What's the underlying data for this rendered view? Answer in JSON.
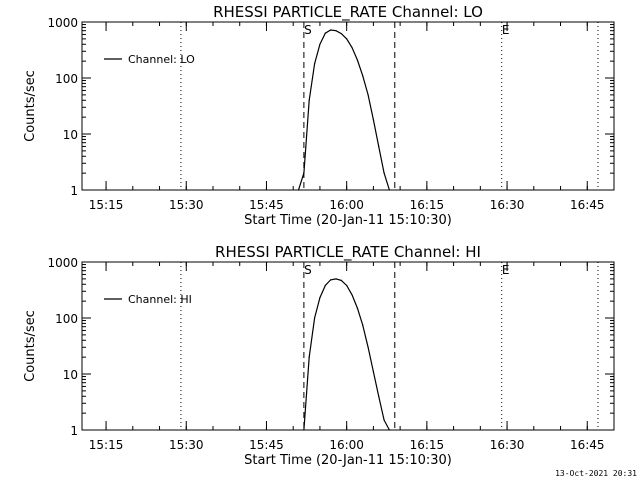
{
  "chart_data": [
    {
      "type": "line",
      "title": "RHESSI PARTICLE_RATE Channel: LO",
      "xlabel": "Start Time (20-Jan-11 15:10:30)",
      "ylabel": "Counts/sec",
      "yscale": "log",
      "ylim": [
        1,
        1000
      ],
      "y_ticks": [
        "1",
        "10",
        "100",
        "1000"
      ],
      "xlim": [
        "15:10:30",
        "16:50:00"
      ],
      "x_ticks": [
        "15:15",
        "15:30",
        "15:45",
        "16:00",
        "16:15",
        "16:30",
        "16:45"
      ],
      "legend": "top-left",
      "series": [
        {
          "name": "Channel: LO",
          "x": [
            "15:51:00",
            "15:52:00",
            "15:53:00",
            "15:54:00",
            "15:55:00",
            "15:56:00",
            "15:57:00",
            "15:58:00",
            "15:59:00",
            "16:00:00",
            "16:01:00",
            "16:02:00",
            "16:03:00",
            "16:04:00",
            "16:05:00",
            "16:06:00",
            "16:07:00",
            "16:08:00"
          ],
          "values": [
            1,
            2,
            40,
            180,
            400,
            630,
            720,
            700,
            620,
            500,
            350,
            210,
            110,
            50,
            18,
            6,
            2,
            1
          ]
        }
      ],
      "vlines_dashed": [
        "15:52:00",
        "16:09:00"
      ],
      "vlines_dotted": [
        "15:29:00",
        "16:29:00",
        "16:47:00"
      ],
      "markers": [
        {
          "label": "S",
          "x": "15:52:00"
        },
        {
          "label": "E",
          "x": "16:29:00"
        }
      ]
    },
    {
      "type": "line",
      "title": "RHESSI PARTICLE_RATE Channel: HI",
      "xlabel": "Start Time (20-Jan-11 15:10:30)",
      "ylabel": "Counts/sec",
      "yscale": "log",
      "ylim": [
        1,
        1000
      ],
      "y_ticks": [
        "1",
        "10",
        "100",
        "1000"
      ],
      "xlim": [
        "15:10:30",
        "16:50:00"
      ],
      "x_ticks": [
        "15:15",
        "15:30",
        "15:45",
        "16:00",
        "16:15",
        "16:30",
        "16:45"
      ],
      "legend": "top-left",
      "series": [
        {
          "name": "Channel: HI",
          "x": [
            "15:52:00",
            "15:53:00",
            "15:54:00",
            "15:55:00",
            "15:56:00",
            "15:57:00",
            "15:58:00",
            "15:59:00",
            "16:00:00",
            "16:01:00",
            "16:02:00",
            "16:03:00",
            "16:04:00",
            "16:05:00",
            "16:06:00",
            "16:07:00",
            "16:08:00"
          ],
          "values": [
            1,
            20,
            100,
            230,
            380,
            480,
            500,
            470,
            380,
            260,
            150,
            75,
            30,
            11,
            4,
            1.5,
            1
          ]
        }
      ],
      "vlines_dashed": [
        "15:52:00",
        "16:09:00"
      ],
      "vlines_dotted": [
        "15:29:00",
        "16:29:00",
        "16:47:00"
      ],
      "markers": [
        {
          "label": "S",
          "x": "15:52:00"
        },
        {
          "label": "E",
          "x": "16:29:00"
        }
      ]
    }
  ],
  "footer": {
    "timestamp": "13-Oct-2021 20:31"
  }
}
